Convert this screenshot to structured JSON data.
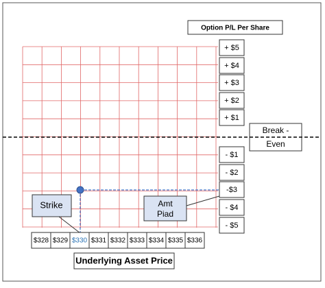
{
  "title": "Option P/L Per Share",
  "pl_labels": [
    "+ $5",
    "+ $4",
    "+ $3",
    "+ $2",
    "+ $1",
    "- $1",
    "- $2",
    "-$3",
    "- $4",
    "- $5"
  ],
  "break_even": [
    "Break -",
    "Even"
  ],
  "prices": [
    "$328",
    "$329",
    "$330",
    "$331",
    "$332",
    "$333",
    "$334",
    "$335",
    "$336"
  ],
  "strike": "Strike",
  "amt_paid": [
    "Amt",
    "Piad"
  ],
  "x_axis_label": "Underlying Asset Price"
}
